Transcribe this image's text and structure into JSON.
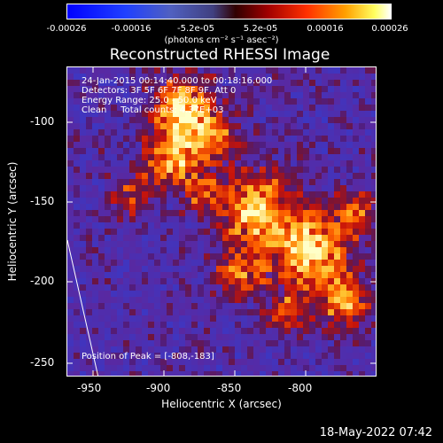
{
  "colorbar": {
    "tick_labels": [
      "-0.00026",
      "-0.00016",
      "-5.2e-05",
      "5.2e-05",
      "0.00016",
      "0.00026"
    ],
    "units": "(photons cm⁻² s⁻¹ asec⁻²)"
  },
  "title": "Reconstructed RHESSI Image",
  "info": {
    "time": "24-Jan-2015 00:14:40.000 to 00:18:16.000",
    "detectors": "Detectors: 3F 5F 6F 7F 8F 9F, Att 0",
    "energy": "Energy Range: 25.0 - 50.0 keV",
    "clean": "Clean     Total counts: 4.37E+03",
    "peak": "Position of Peak = [-808,-183]"
  },
  "axes": {
    "xlabel": "Heliocentric X (arcsec)",
    "ylabel": "Heliocentric Y (arcsec)",
    "x_ticks": [
      "-950",
      "-900",
      "-850",
      "-800"
    ],
    "y_ticks": [
      "-100",
      "-150",
      "-200",
      "-250"
    ]
  },
  "footer": {
    "date": "18-May-2022 07:42"
  }
}
